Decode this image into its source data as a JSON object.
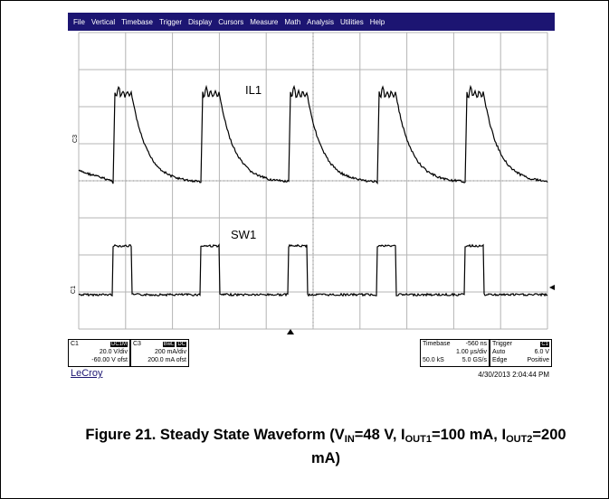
{
  "menu": [
    "File",
    "Vertical",
    "Timebase",
    "Trigger",
    "Display",
    "Cursors",
    "Measure",
    "Math",
    "Analysis",
    "Utilities",
    "Help"
  ],
  "traces": {
    "upper_label": "IL1",
    "lower_label": "SW1",
    "upper_channel": "C3",
    "lower_channel": "C1"
  },
  "c1_box": {
    "name": "C1",
    "badge": "DC1M",
    "vdiv": "20.0 V/div",
    "offset": "-60.00 V ofst"
  },
  "c3_box": {
    "name": "C3",
    "badge1": "BwL",
    "badge2": "DC",
    "vdiv": "200 mA/div",
    "offset": "200.0 mA ofst"
  },
  "timebase_box": {
    "label": "Timebase",
    "pos": "-560 ns",
    "tdiv": "1.00 µs/div",
    "samples": "50.0 kS",
    "rate": "5.0 GS/s"
  },
  "trigger_box": {
    "label": "Trigger",
    "badge": "C1",
    "mode": "Auto",
    "level": "6.0 V",
    "type": "Edge",
    "slope": "Positive"
  },
  "brand": "LeCroy",
  "timestamp": "4/30/2013 2:04:44 PM",
  "caption": {
    "prefix": "Figure 21. Steady State Waveform (V",
    "vin_sub": "IN",
    "vin_val": "=48 V, I",
    "iout1_sub": "OUT1",
    "iout1_val": "=100 mA, I",
    "iout2_sub": "OUT2",
    "iout2_val": "=200 mA)"
  },
  "colors": {
    "menubar": "#1c1572",
    "trace": "#000000",
    "grid": "#b4b4b4"
  }
}
